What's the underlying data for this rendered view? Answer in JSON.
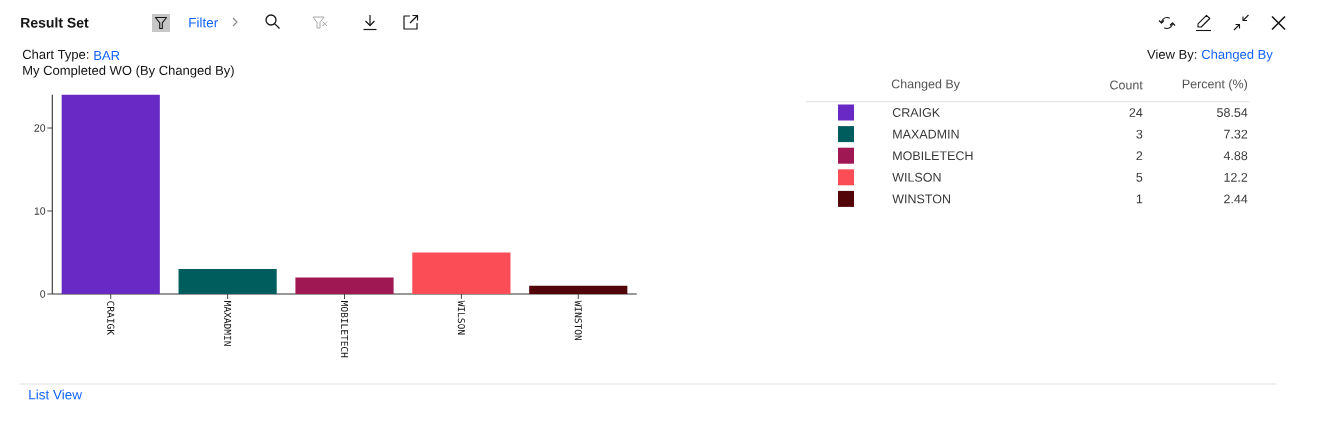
{
  "chart_data": {
    "type": "bar",
    "title": "My Completed WO (By Changed By)",
    "categories": [
      "CRAIGK",
      "MAXADMIN",
      "MOBILETECH",
      "WILSON",
      "WINSTON"
    ],
    "values": [
      24,
      3,
      2,
      5,
      1
    ],
    "colors": [
      "#6929c4",
      "#005d5d",
      "#9f1853",
      "#fa4d56",
      "#520408"
    ],
    "ylim": [
      0,
      24
    ],
    "yticks": [
      0,
      10,
      20
    ],
    "legend_title": "Changed By",
    "annotations": [
      "Result Set",
      "Filter",
      "Chart Type:",
      "BAR",
      "View By:",
      "Changed By",
      "Count",
      "Percent (%)",
      "24",
      "3",
      "2",
      "5",
      "1",
      "58.54",
      "7.32",
      "4.88",
      "12.2",
      "2.44",
      "List View"
    ]
  }
}
